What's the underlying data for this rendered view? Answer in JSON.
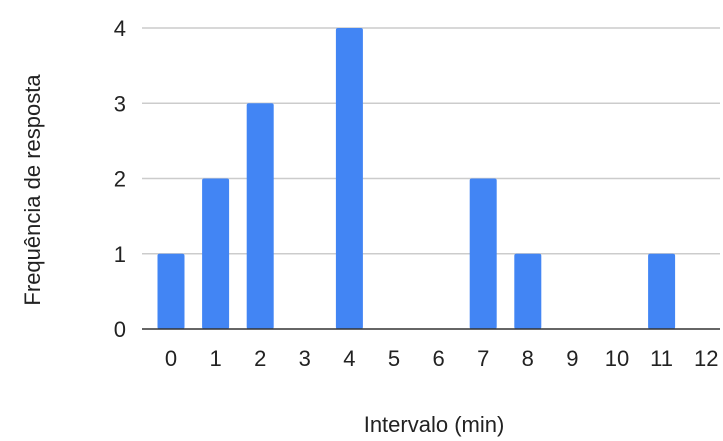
{
  "chart_data": {
    "type": "bar",
    "categories": [
      "0",
      "1",
      "2",
      "3",
      "4",
      "5",
      "6",
      "7",
      "8",
      "9",
      "10",
      "11",
      "12"
    ],
    "values": [
      1,
      2,
      3,
      0,
      4,
      0,
      0,
      2,
      1,
      0,
      0,
      1,
      0
    ],
    "xlabel": "Intervalo (min)",
    "ylabel": "Frequência de resposta",
    "ylim": [
      0,
      4
    ],
    "yticks": [
      0,
      1,
      2,
      3,
      4
    ],
    "grid": true,
    "colors": {
      "bar": "#4285f4",
      "grid": "#cccccc",
      "axis": "#333333"
    }
  }
}
